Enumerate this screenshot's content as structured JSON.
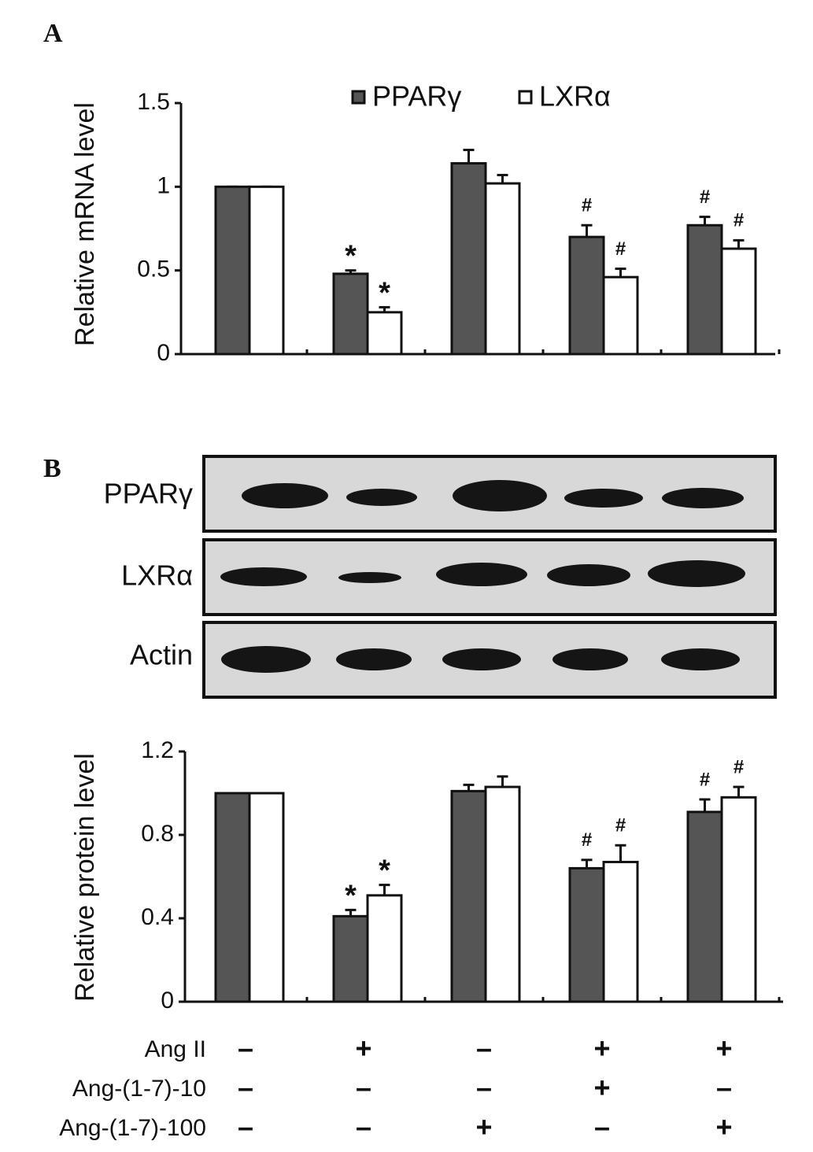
{
  "panels": [
    "A",
    "B"
  ],
  "chart_data": [
    {
      "type": "bar",
      "ylabel": "Relative mRNA level",
      "categories": [
        null,
        null,
        null,
        null,
        null
      ],
      "series": [
        {
          "name": "PPARγ",
          "color": "#555555",
          "values": [
            1,
            0.48,
            1.14,
            0.7,
            0.77
          ],
          "errors": [
            0,
            0.02,
            0.08,
            0.07,
            0.05
          ],
          "markers": [
            null,
            "*",
            null,
            "#",
            "#"
          ]
        },
        {
          "name": "LXRα",
          "color": "#ffffff",
          "values": [
            1,
            0.25,
            1.02,
            0.46,
            0.63
          ],
          "errors": [
            0,
            0.03,
            0.05,
            0.05,
            0.05
          ],
          "markers": [
            null,
            "*",
            null,
            "#",
            "#"
          ]
        }
      ],
      "ylim": [
        0,
        1.5
      ],
      "yticks": [
        0,
        0.5,
        1,
        1.5
      ],
      "legend": "top"
    },
    {
      "type": "bar",
      "ylabel": "Relative protein level",
      "categories": [
        null,
        null,
        null,
        null,
        null
      ],
      "series": [
        {
          "color": "#555555",
          "values": [
            1,
            0.41,
            1.01,
            0.64,
            0.91
          ],
          "errors": [
            0,
            0.03,
            0.03,
            0.04,
            0.06
          ],
          "markers": [
            null,
            "*",
            null,
            "#",
            "#"
          ]
        },
        {
          "color": "#ffffff",
          "values": [
            1,
            0.51,
            1.03,
            0.67,
            0.98
          ],
          "errors": [
            0,
            0.05,
            0.05,
            0.08,
            0.05
          ],
          "markers": [
            null,
            "*",
            null,
            "#",
            "#"
          ]
        }
      ],
      "ylim": [
        0,
        1.2
      ],
      "yticks": [
        0,
        0.4,
        0.8,
        1.2
      ]
    }
  ],
  "blot": {
    "labels": [
      "PPARγ",
      "LXRα",
      "Actin"
    ]
  },
  "treatments": {
    "rows": [
      {
        "label": "Ang II",
        "cells": [
          "–",
          "+",
          "–",
          "+",
          "+"
        ]
      },
      {
        "label": "Ang-(1-7)-10",
        "cells": [
          "–",
          "–",
          "–",
          "+",
          "–"
        ]
      },
      {
        "label": "Ang-(1-7)-100",
        "cells": [
          "–",
          "–",
          "+",
          "–",
          "+"
        ]
      }
    ]
  }
}
